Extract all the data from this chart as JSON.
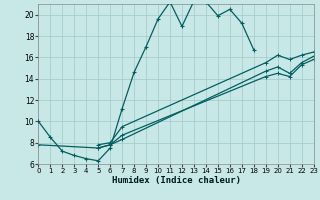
{
  "xlabel": "Humidex (Indice chaleur)",
  "bg_color": "#c8e8e8",
  "grid_color": "#a8cccc",
  "line_color": "#006060",
  "xlim": [
    0,
    23
  ],
  "ylim": [
    6,
    21
  ],
  "yticks": [
    6,
    8,
    10,
    12,
    14,
    16,
    18,
    20
  ],
  "xticks": [
    0,
    1,
    2,
    3,
    4,
    5,
    6,
    7,
    8,
    9,
    10,
    11,
    12,
    13,
    14,
    15,
    16,
    17,
    18,
    19,
    20,
    21,
    22,
    23
  ],
  "curve1_x": [
    0,
    1,
    2,
    3,
    4,
    5,
    6,
    7,
    8,
    9,
    10,
    11,
    12,
    13,
    14,
    15,
    16,
    17,
    18
  ],
  "curve1_y": [
    10.0,
    8.5,
    7.2,
    6.8,
    6.5,
    6.3,
    7.5,
    11.2,
    14.6,
    17.0,
    19.6,
    21.2,
    18.9,
    21.3,
    21.2,
    19.9,
    20.5,
    19.2,
    16.7
  ],
  "line_a_x": [
    0,
    5,
    6,
    7,
    19,
    20,
    21,
    22,
    23
  ],
  "line_a_y": [
    7.8,
    7.5,
    7.8,
    8.7,
    14.2,
    14.5,
    14.2,
    15.3,
    15.8
  ],
  "line_b_x": [
    5,
    6,
    7,
    19,
    20,
    21,
    22,
    23
  ],
  "line_b_y": [
    7.5,
    7.8,
    8.3,
    14.7,
    15.1,
    14.5,
    15.5,
    16.1
  ],
  "line_c_x": [
    5,
    6,
    7,
    19,
    20,
    21,
    22,
    23
  ],
  "line_c_y": [
    7.8,
    8.0,
    9.5,
    15.5,
    16.2,
    15.8,
    16.2,
    16.5
  ]
}
